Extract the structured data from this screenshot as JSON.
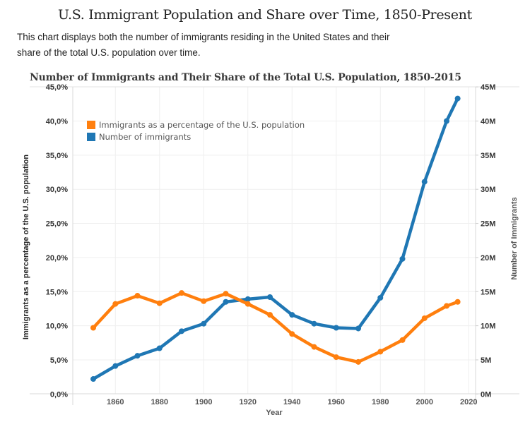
{
  "page": {
    "title": "U.S. Immigrant Population and Share over Time, 1850-Present",
    "description": "This chart displays both the number of immigrants residing in the United States and their share of the total U.S. population over time."
  },
  "chart_data": {
    "type": "line",
    "title": "Number of Immigrants and Their Share of the Total U.S. Population, 1850-2015",
    "xlabel": "Year",
    "ylabel_left": "Immigrants as a percentage of the U.S. population",
    "ylabel_right": "Number of Immigrants",
    "x": [
      1850,
      1860,
      1870,
      1880,
      1890,
      1900,
      1910,
      1920,
      1930,
      1940,
      1950,
      1960,
      1970,
      1980,
      1990,
      2000,
      2010,
      2015
    ],
    "xlim": [
      1841,
      2025
    ],
    "x_ticks": [
      "1860",
      "1880",
      "1900",
      "1920",
      "1940",
      "1960",
      "1980",
      "2000",
      "2020"
    ],
    "x_tick_values": [
      1860,
      1880,
      1900,
      1920,
      1940,
      1960,
      1980,
      2000,
      2020
    ],
    "ylim_left": [
      0,
      45
    ],
    "ylim_right": [
      0,
      45
    ],
    "y_ticks_left": [
      "0,0%",
      "5,0%",
      "10,0%",
      "15,0%",
      "20,0%",
      "25,0%",
      "30,0%",
      "35,0%",
      "40,0%",
      "45,0%"
    ],
    "y_ticks_right": [
      "0M",
      "5M",
      "10M",
      "15M",
      "20M",
      "25M",
      "30M",
      "35M",
      "40M",
      "45M"
    ],
    "y_tick_values": [
      0,
      5,
      10,
      15,
      20,
      25,
      30,
      35,
      40,
      45
    ],
    "grid": true,
    "legend_position": "top-left",
    "series": [
      {
        "name": "Immigrants as a percentage of the U.S. population",
        "axis": "left",
        "unit": "percent",
        "color": "#ff7f0e",
        "values": [
          9.7,
          13.2,
          14.4,
          13.3,
          14.8,
          13.6,
          14.7,
          13.2,
          11.6,
          8.8,
          6.9,
          5.4,
          4.7,
          6.2,
          7.9,
          11.1,
          12.9,
          13.5
        ]
      },
      {
        "name": "Number of immigrants",
        "axis": "right",
        "unit": "millions",
        "color": "#1f77b4",
        "values": [
          2.2,
          4.1,
          5.6,
          6.7,
          9.2,
          10.3,
          13.5,
          13.9,
          14.2,
          11.6,
          10.3,
          9.7,
          9.6,
          14.1,
          19.8,
          31.1,
          40.0,
          43.3
        ]
      }
    ]
  }
}
